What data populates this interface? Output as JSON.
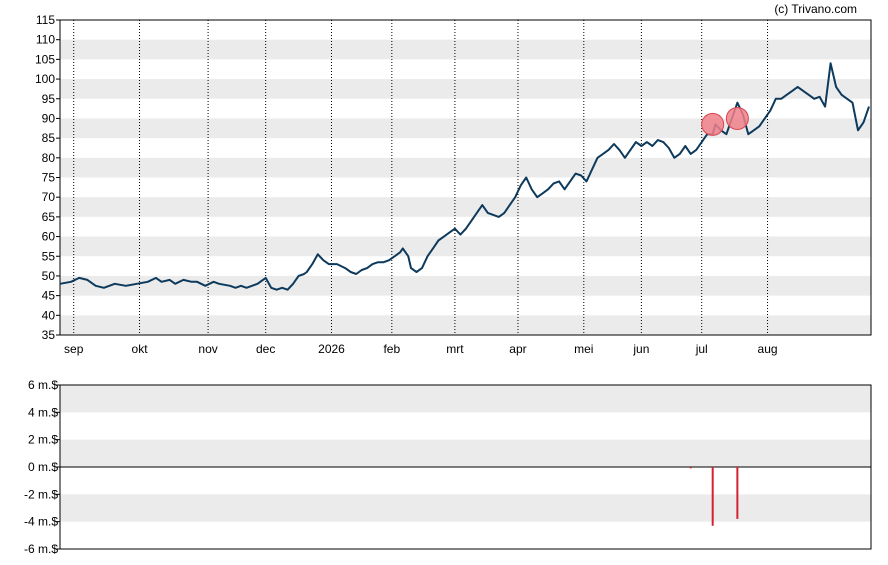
{
  "credit": "(c) Trivano.com",
  "colors": {
    "price_line": "#0d3a5c",
    "band": "#ebebeb",
    "marker_fill": "#f0808a",
    "marker_stroke": "#d9444f",
    "volume_bar": "#d62030",
    "axis": "#000000"
  },
  "chart_data": [
    {
      "type": "line",
      "title": "",
      "xlabel": "",
      "ylabel": "",
      "ylim": [
        35,
        115
      ],
      "y_ticks": [
        "115",
        "110",
        "105",
        "100",
        "95",
        "90",
        "85",
        "80",
        "75",
        "70",
        "65",
        "60",
        "55",
        "50",
        "45",
        "40",
        "35"
      ],
      "x_ticks": [
        "sep",
        "okt",
        "nov",
        "dec",
        "2026",
        "feb",
        "mrt",
        "apr",
        "mei",
        "jun",
        "jul",
        "aug"
      ],
      "grid": "dotted vertical lines at month starts, alternating horizontal bands",
      "series": [
        {
          "points": [
            [
              0,
              48
            ],
            [
              4,
              48.5
            ],
            [
              7,
              49.5
            ],
            [
              10,
              49
            ],
            [
              13,
              47.5
            ],
            [
              16,
              47
            ],
            [
              20,
              48
            ],
            [
              24,
              47.5
            ],
            [
              28,
              48
            ],
            [
              32,
              48.5
            ],
            [
              35,
              49.5
            ],
            [
              37,
              48.5
            ],
            [
              40,
              49
            ],
            [
              42,
              48
            ],
            [
              45,
              49
            ],
            [
              48,
              48.5
            ],
            [
              50,
              48.5
            ],
            [
              53,
              47.5
            ],
            [
              56,
              48.5
            ],
            [
              58,
              48
            ],
            [
              62,
              47.5
            ],
            [
              64,
              47
            ],
            [
              66,
              47.5
            ],
            [
              68,
              47
            ],
            [
              70,
              47.5
            ],
            [
              72,
              48
            ],
            [
              75,
              49.5
            ],
            [
              77,
              47
            ],
            [
              79,
              46.5
            ],
            [
              81,
              47
            ],
            [
              83,
              46.5
            ],
            [
              85,
              48
            ],
            [
              87,
              50
            ],
            [
              89,
              50.5
            ],
            [
              90,
              51
            ],
            [
              92,
              53
            ],
            [
              94,
              55.5
            ],
            [
              96,
              54
            ],
            [
              98,
              53
            ],
            [
              101,
              53
            ],
            [
              104,
              52
            ],
            [
              106,
              51
            ],
            [
              108,
              50.5
            ],
            [
              110,
              51.5
            ],
            [
              112,
              52
            ],
            [
              114,
              53
            ],
            [
              116,
              53.5
            ],
            [
              118,
              53.5
            ],
            [
              120,
              54
            ],
            [
              122,
              55
            ],
            [
              124,
              56
            ],
            [
              125,
              57
            ],
            [
              127,
              55
            ],
            [
              128,
              52
            ],
            [
              130,
              51
            ],
            [
              132,
              52
            ],
            [
              134,
              55
            ],
            [
              136,
              57
            ],
            [
              138,
              59
            ],
            [
              140,
              60
            ],
            [
              142,
              61
            ],
            [
              144,
              62
            ],
            [
              146,
              60.5
            ],
            [
              148,
              62
            ],
            [
              150,
              64
            ],
            [
              152,
              66
            ],
            [
              154,
              68
            ],
            [
              156,
              66
            ],
            [
              158,
              65.5
            ],
            [
              160,
              65
            ],
            [
              162,
              66
            ],
            [
              164,
              68
            ],
            [
              166,
              70
            ],
            [
              168,
              73
            ],
            [
              170,
              75
            ],
            [
              172,
              72
            ],
            [
              174,
              70
            ],
            [
              176,
              71
            ],
            [
              178,
              72
            ],
            [
              180,
              73.5
            ],
            [
              182,
              74
            ],
            [
              184,
              72
            ],
            [
              186,
              74
            ],
            [
              188,
              76
            ],
            [
              190,
              75.5
            ],
            [
              192,
              74
            ],
            [
              194,
              77
            ],
            [
              196,
              80
            ],
            [
              198,
              81
            ],
            [
              200,
              82
            ],
            [
              202,
              83.5
            ],
            [
              204,
              82
            ],
            [
              206,
              80
            ],
            [
              208,
              82
            ],
            [
              210,
              84
            ],
            [
              212,
              83
            ],
            [
              214,
              84
            ],
            [
              216,
              83
            ],
            [
              218,
              84.5
            ],
            [
              220,
              84
            ],
            [
              222,
              82.5
            ],
            [
              224,
              80
            ],
            [
              226,
              81
            ],
            [
              228,
              83
            ],
            [
              230,
              81
            ],
            [
              232,
              82
            ],
            [
              234,
              84
            ],
            [
              236,
              86
            ],
            [
              238,
              86
            ],
            [
              239,
              88.5
            ],
            [
              241,
              87
            ],
            [
              243,
              86
            ],
            [
              245,
              90
            ],
            [
              247,
              94
            ],
            [
              249,
              91
            ],
            [
              251,
              86
            ],
            [
              253,
              87
            ],
            [
              255,
              88
            ],
            [
              257,
              90
            ],
            [
              259,
              92
            ],
            [
              261,
              95
            ],
            [
              263,
              95
            ],
            [
              265,
              96
            ],
            [
              267,
              97
            ],
            [
              269,
              98
            ],
            [
              271,
              97
            ],
            [
              273,
              96
            ],
            [
              275,
              95
            ],
            [
              277,
              95.5
            ],
            [
              279,
              93
            ],
            [
              281,
              104
            ],
            [
              283,
              98
            ],
            [
              285,
              96
            ],
            [
              287,
              95
            ],
            [
              289,
              94
            ],
            [
              291,
              87
            ],
            [
              293,
              89
            ],
            [
              295,
              93
            ]
          ]
        }
      ],
      "trade_markers": [
        [
          238,
          88.5
        ],
        [
          247,
          90
        ]
      ],
      "x_range": [
        0,
        295
      ],
      "month_positions": [
        5,
        29,
        54,
        75,
        99,
        121,
        144,
        167,
        191,
        212,
        234,
        258
      ]
    },
    {
      "type": "bar",
      "title": "",
      "ylim": [
        -6,
        6
      ],
      "y_ticks": [
        "6 m.$",
        "4 m.$",
        "2 m.$",
        "0 m.$",
        "-2 m.$",
        "-4 m.$",
        "-6 m.$"
      ],
      "bars": [
        [
          230,
          -0.1
        ],
        [
          238,
          -4.3
        ],
        [
          247,
          -3.8
        ]
      ]
    }
  ]
}
